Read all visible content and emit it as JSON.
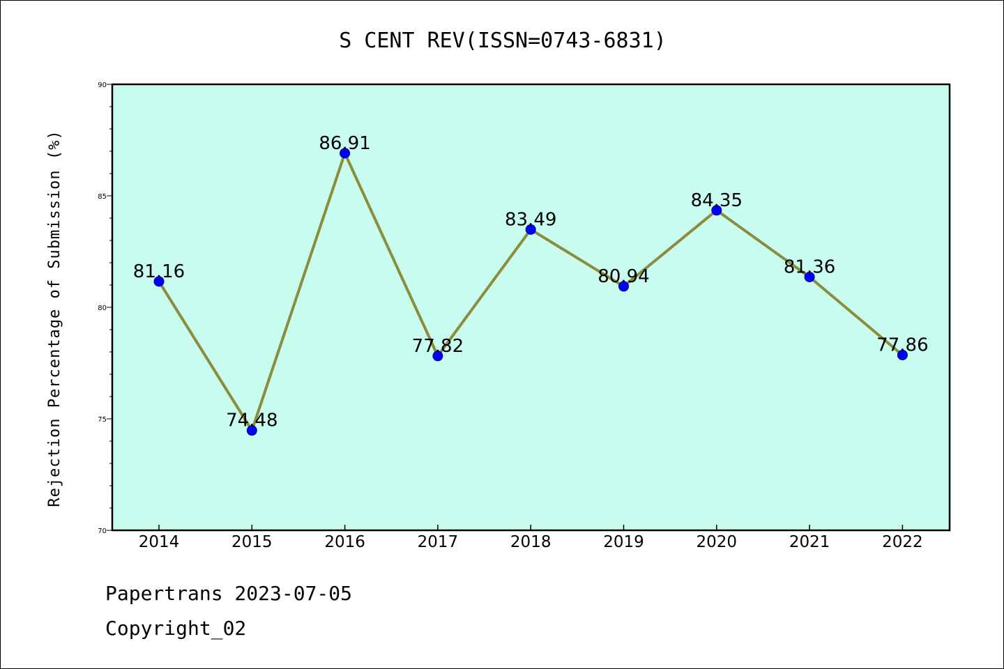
{
  "chart_data": {
    "type": "line",
    "title": "S CENT REV(ISSN=0743-6831)",
    "ylabel": "Rejection Percentage of Submission (%)",
    "categories": [
      "2014",
      "2015",
      "2016",
      "2017",
      "2018",
      "2019",
      "2020",
      "2021",
      "2022"
    ],
    "values": [
      81.16,
      74.48,
      86.91,
      77.82,
      83.49,
      80.94,
      84.35,
      81.36,
      77.86
    ],
    "ylim": [
      70,
      90
    ],
    "yticks": [
      "70",
      "75",
      "80",
      "85",
      "90"
    ],
    "grid": false,
    "colors": {
      "plot_background": "#c8fcee",
      "line": "#8b8c3c",
      "marker": "#0000ff"
    }
  },
  "footer": {
    "line1": "Papertrans 2023-07-05",
    "line2": "Copyright_02"
  }
}
